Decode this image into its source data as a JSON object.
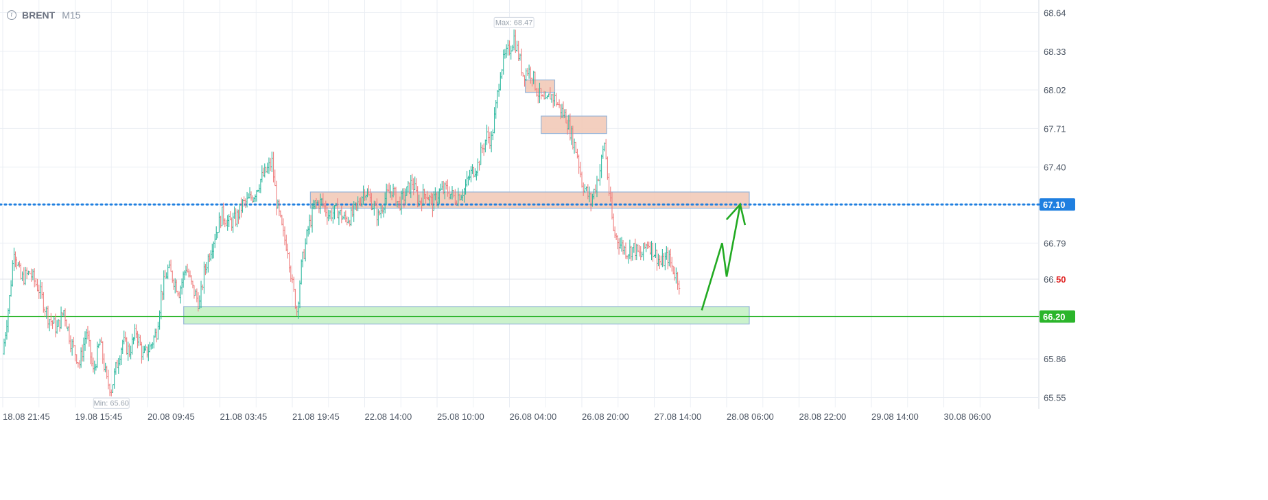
{
  "header": {
    "symbol": "BRENT",
    "timeframe": "M15",
    "info_icon": "info-icon"
  },
  "colors": {
    "up": "#2fb9a0",
    "down": "#ef7f7f",
    "resistance_fill": "#f3cdbc",
    "support_fill": "#c9f2c9",
    "level_blue": "#1f7fe0",
    "level_green": "#2bb52b",
    "arrow": "#22aa22"
  },
  "chart_data": {
    "type": "line",
    "title": "",
    "symbol": "BRENT",
    "timeframe": "M15",
    "x_tick_labels": [
      "18.08 21:45",
      "19.08 15:45",
      "20.08 09:45",
      "21.08 03:45",
      "21.08 19:45",
      "22.08 14:00",
      "25.08 10:00",
      "26.08 04:00",
      "26.08 20:00",
      "27.08 14:00",
      "28.08 06:00",
      "28.08 22:00",
      "29.08 14:00",
      "30.08 06:00"
    ],
    "y_tick_labels": [
      "68.64",
      "68.33",
      "68.02",
      "67.71",
      "67.40",
      "67.10",
      "66.79",
      "66.50",
      "65.86",
      "65.55"
    ],
    "ylim": [
      65.47,
      68.72
    ],
    "grid": true,
    "series": [
      {
        "values": [
          [
            0,
            65.9
          ],
          [
            3,
            66.35
          ],
          [
            5,
            66.75
          ],
          [
            8,
            66.5
          ],
          [
            12,
            66.55
          ],
          [
            16,
            66.42
          ],
          [
            20,
            66.2
          ],
          [
            24,
            66.1
          ],
          [
            27,
            66.25
          ],
          [
            30,
            66.0
          ],
          [
            34,
            65.82
          ],
          [
            37,
            66.08
          ],
          [
            40,
            65.75
          ],
          [
            43,
            66.0
          ],
          [
            46,
            65.68
          ],
          [
            48,
            65.62
          ],
          [
            50,
            65.78
          ],
          [
            53,
            66.0
          ],
          [
            56,
            65.92
          ],
          [
            59,
            66.08
          ],
          [
            62,
            65.88
          ],
          [
            65,
            65.95
          ],
          [
            68,
            66.08
          ],
          [
            70,
            66.38
          ],
          [
            73,
            66.58
          ],
          [
            75,
            66.52
          ],
          [
            78,
            66.4
          ],
          [
            81,
            66.6
          ],
          [
            84,
            66.42
          ],
          [
            87,
            66.3
          ],
          [
            89,
            66.55
          ],
          [
            92,
            66.75
          ],
          [
            95,
            66.92
          ],
          [
            97,
            67.02
          ],
          [
            100,
            66.95
          ],
          [
            103,
            66.98
          ],
          [
            106,
            67.1
          ],
          [
            108,
            67.12
          ],
          [
            111,
            67.18
          ],
          [
            114,
            67.3
          ],
          [
            117,
            67.38
          ],
          [
            119,
            67.44
          ],
          [
            121,
            67.12
          ],
          [
            124,
            66.85
          ],
          [
            126,
            66.75
          ],
          [
            128,
            66.45
          ],
          [
            130,
            66.25
          ],
          [
            132,
            66.6
          ],
          [
            135,
            66.9
          ],
          [
            138,
            67.1
          ],
          [
            141,
            67.12
          ],
          [
            144,
            67.02
          ],
          [
            148,
            67.05
          ],
          [
            151,
            66.98
          ],
          [
            154,
            67.0
          ],
          [
            157,
            67.1
          ],
          [
            160,
            67.22
          ],
          [
            163,
            67.12
          ],
          [
            166,
            67.0
          ],
          [
            169,
            67.15
          ],
          [
            172,
            67.22
          ],
          [
            175,
            67.1
          ],
          [
            178,
            67.18
          ],
          [
            181,
            67.28
          ],
          [
            184,
            67.12
          ],
          [
            187,
            67.2
          ],
          [
            190,
            67.1
          ],
          [
            193,
            67.2
          ],
          [
            196,
            67.22
          ],
          [
            200,
            67.15
          ],
          [
            204,
            67.22
          ],
          [
            207,
            67.35
          ],
          [
            210,
            67.42
          ],
          [
            212,
            67.55
          ],
          [
            214,
            67.65
          ],
          [
            216,
            67.62
          ],
          [
            218,
            67.88
          ],
          [
            220,
            68.18
          ],
          [
            222,
            68.28
          ],
          [
            224,
            68.35
          ],
          [
            226,
            68.44
          ],
          [
            228,
            68.3
          ],
          [
            230,
            68.15
          ],
          [
            232,
            68.18
          ],
          [
            234,
            68.15
          ],
          [
            236,
            68.02
          ],
          [
            238,
            67.95
          ],
          [
            240,
            67.9
          ],
          [
            242,
            67.98
          ],
          [
            244,
            67.95
          ],
          [
            246,
            67.88
          ],
          [
            249,
            67.8
          ],
          [
            252,
            67.62
          ],
          [
            254,
            67.5
          ],
          [
            256,
            67.28
          ],
          [
            258,
            67.2
          ],
          [
            260,
            67.12
          ],
          [
            262,
            67.25
          ],
          [
            264,
            67.38
          ],
          [
            266,
            67.6
          ],
          [
            268,
            67.2
          ],
          [
            270,
            66.88
          ],
          [
            273,
            66.78
          ],
          [
            276,
            66.72
          ],
          [
            279,
            66.75
          ],
          [
            282,
            66.68
          ],
          [
            285,
            66.8
          ],
          [
            288,
            66.72
          ],
          [
            291,
            66.62
          ],
          [
            294,
            66.68
          ],
          [
            297,
            66.55
          ],
          [
            299,
            66.48
          ]
        ]
      }
    ],
    "levels": [
      {
        "value": 67.1,
        "label": "67.10",
        "style": "dotted",
        "color": "blue"
      },
      {
        "value": 66.2,
        "label": "66.20",
        "style": "solid",
        "color": "green"
      }
    ],
    "current_price": {
      "value": 66.5,
      "label_main": "66.",
      "label_tail": "50"
    },
    "annotations": [
      {
        "label": "Max: 68.47",
        "x": 226,
        "y": 68.47
      },
      {
        "label": "Min: 65.60",
        "x": 48,
        "y": 65.6
      }
    ],
    "zones": [
      {
        "kind": "resistance",
        "x0": 136,
        "x1": 330,
        "y0": 67.07,
        "y1": 67.2
      },
      {
        "kind": "resistance",
        "x0": 231,
        "x1": 244,
        "y0": 68.0,
        "y1": 68.1
      },
      {
        "kind": "resistance",
        "x0": 238,
        "x1": 267,
        "y0": 67.67,
        "y1": 67.81
      },
      {
        "kind": "support",
        "x0": 80,
        "x1": 330,
        "y0": 66.14,
        "y1": 66.28
      }
    ],
    "projection_arrow": [
      [
        309,
        66.25
      ],
      [
        318,
        66.79
      ],
      [
        320,
        66.52
      ],
      [
        326,
        67.1
      ]
    ],
    "x_range": [
      0,
      458
    ]
  }
}
